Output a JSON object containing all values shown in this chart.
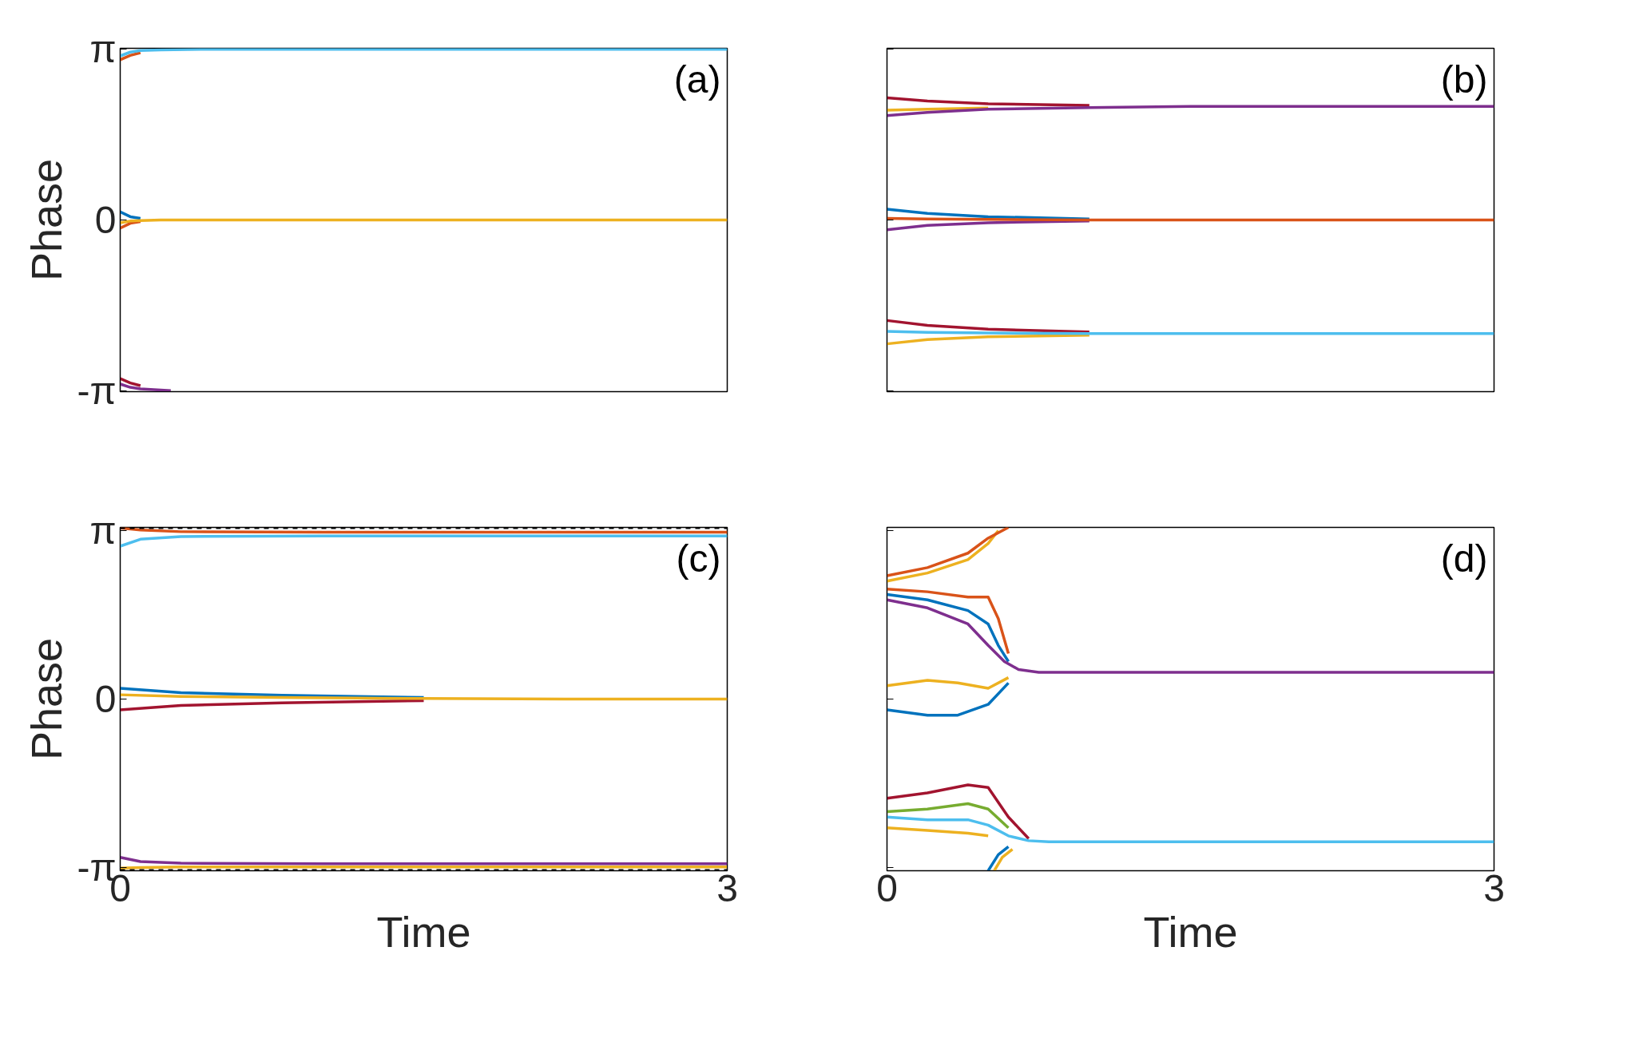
{
  "chart_data": [
    {
      "type": "line",
      "annotations": [
        "(a)"
      ],
      "ylabel": "Phase",
      "xlim": [
        0,
        3
      ],
      "ylim": [
        -3.16,
        3.16
      ],
      "xticks": [
        0,
        3
      ],
      "yticks": [
        {
          "value": -3.14159,
          "label": "-π"
        },
        0,
        {
          "value": 3.14159,
          "label": "π"
        }
      ],
      "tick_labels": "y",
      "grid": false,
      "line_style": "solid",
      "series": [
        {
          "color": "#d95319",
          "x": [
            0,
            0.05,
            0.1
          ],
          "values": [
            2.95,
            3.03,
            3.08
          ]
        },
        {
          "color": "#4dbeee",
          "x": [
            0,
            0.05,
            0.1,
            0.2,
            0.4,
            3
          ],
          "values": [
            3.02,
            3.09,
            3.12,
            3.13,
            3.14,
            3.14
          ]
        },
        {
          "color": "#0072bd",
          "x": [
            0,
            0.05,
            0.1
          ],
          "values": [
            0.15,
            0.06,
            0.03
          ]
        },
        {
          "color": "#d95319",
          "x": [
            0,
            0.05,
            0.1
          ],
          "values": [
            -0.15,
            -0.06,
            -0.03
          ]
        },
        {
          "color": "#edb120",
          "x": [
            0,
            0.05,
            0.1,
            0.2,
            0.4,
            3
          ],
          "values": [
            -0.05,
            -0.02,
            -0.01,
            0,
            0,
            0
          ]
        },
        {
          "color": "#a2142f",
          "x": [
            0,
            0.05,
            0.1
          ],
          "values": [
            -2.92,
            -3.0,
            -3.05
          ]
        },
        {
          "color": "#7e2f8e",
          "x": [
            0,
            0.05,
            0.1,
            0.2,
            0.25
          ],
          "values": [
            -3.02,
            -3.08,
            -3.11,
            -3.13,
            -3.14
          ]
        }
      ]
    },
    {
      "type": "line",
      "annotations": [
        "(b)"
      ],
      "xlim": [
        0,
        3
      ],
      "ylim": [
        -3.16,
        3.16
      ],
      "xticks": [
        0,
        3
      ],
      "yticks": [
        {
          "value": -3.14159,
          "label": null
        },
        {
          "value": 0,
          "label": null
        },
        {
          "value": 3.14159,
          "label": null
        }
      ],
      "tick_labels": false,
      "grid": false,
      "line_style": "solid",
      "series": [
        {
          "color": "#a2142f",
          "x": [
            0,
            0.2,
            0.5,
            1
          ],
          "values": [
            2.25,
            2.19,
            2.14,
            2.11
          ]
        },
        {
          "color": "#edb120",
          "x": [
            0,
            0.2,
            0.5
          ],
          "values": [
            2.02,
            2.04,
            2.06
          ]
        },
        {
          "color": "#7e2f8e",
          "x": [
            0,
            0.2,
            0.5,
            1,
            1.5,
            3
          ],
          "values": [
            1.92,
            1.98,
            2.04,
            2.07,
            2.09,
            2.09
          ]
        },
        {
          "color": "#0072bd",
          "x": [
            0,
            0.2,
            0.5,
            1
          ],
          "values": [
            0.2,
            0.12,
            0.06,
            0.02
          ]
        },
        {
          "color": "#7e2f8e",
          "x": [
            0,
            0.2,
            0.5,
            1
          ],
          "values": [
            -0.18,
            -0.1,
            -0.05,
            -0.02
          ]
        },
        {
          "color": "#d95319",
          "x": [
            0,
            0.2,
            0.5,
            1,
            1.5,
            3
          ],
          "values": [
            0.03,
            0.02,
            0.01,
            0,
            0,
            0
          ]
        },
        {
          "color": "#a2142f",
          "x": [
            0,
            0.2,
            0.5,
            1
          ],
          "values": [
            -1.85,
            -1.94,
            -2.01,
            -2.06
          ]
        },
        {
          "color": "#edb120",
          "x": [
            0,
            0.2,
            0.5,
            1
          ],
          "values": [
            -2.28,
            -2.2,
            -2.15,
            -2.12
          ]
        },
        {
          "color": "#4dbeee",
          "x": [
            0,
            0.2,
            0.5,
            1,
            1.5,
            3
          ],
          "values": [
            -2.05,
            -2.07,
            -2.08,
            -2.09,
            -2.09,
            -2.09
          ]
        }
      ]
    },
    {
      "type": "line",
      "annotations": [
        "(c)"
      ],
      "xlabel": "Time",
      "ylabel": "Phase",
      "xlim": [
        0,
        3
      ],
      "ylim": [
        -3.2,
        3.2
      ],
      "xticks": [
        0,
        3
      ],
      "yticks": [
        {
          "value": -3.14159,
          "label": "-π"
        },
        0,
        {
          "value": 3.14159,
          "label": "π"
        }
      ],
      "grid": false,
      "line_style": "solid",
      "ref_lines": [
        {
          "axis": "y",
          "value": 3.2,
          "color": "#000000",
          "line_style": "dashed"
        },
        {
          "axis": "y",
          "value": -3.2,
          "color": "#000000",
          "line_style": "dashed"
        }
      ],
      "series": [
        {
          "color": "#d95319",
          "x": [
            0,
            0.1,
            0.3,
            1,
            3
          ],
          "values": [
            3.19,
            3.15,
            3.12,
            3.11,
            3.11
          ]
        },
        {
          "color": "#4dbeee",
          "x": [
            0,
            0.1,
            0.3,
            1,
            3
          ],
          "values": [
            2.85,
            2.98,
            3.03,
            3.04,
            3.04
          ]
        },
        {
          "color": "#0072bd",
          "x": [
            0,
            0.3,
            0.8,
            1.5
          ],
          "values": [
            0.2,
            0.12,
            0.07,
            0.03
          ]
        },
        {
          "color": "#a2142f",
          "x": [
            0,
            0.3,
            0.8,
            1.5
          ],
          "values": [
            -0.2,
            -0.12,
            -0.07,
            -0.03
          ]
        },
        {
          "color": "#edb120",
          "x": [
            0,
            0.3,
            0.8,
            1.5,
            2.2,
            3
          ],
          "values": [
            0.08,
            0.05,
            0.03,
            0.01,
            0,
            0
          ]
        },
        {
          "color": "#7e2f8e",
          "x": [
            0,
            0.1,
            0.3,
            1,
            3
          ],
          "values": [
            -2.95,
            -3.03,
            -3.06,
            -3.07,
            -3.07
          ]
        },
        {
          "color": "#edb120",
          "x": [
            0,
            0.1,
            0.3,
            1,
            3
          ],
          "values": [
            -3.15,
            -3.14,
            -3.13,
            -3.13,
            -3.13
          ]
        }
      ]
    },
    {
      "type": "line",
      "annotations": [
        "(d)"
      ],
      "xlabel": "Time",
      "xlim": [
        0,
        3
      ],
      "ylim": [
        -3.2,
        3.2
      ],
      "xticks": [
        0,
        3
      ],
      "yticks": [
        {
          "value": -3.14159,
          "label": null
        },
        {
          "value": 0,
          "label": null
        },
        {
          "value": 3.14159,
          "label": null
        }
      ],
      "tick_labels": "x",
      "grid": false,
      "line_style": "solid",
      "series": [
        {
          "color": "#edb120",
          "x": [
            0,
            0.2,
            0.4,
            0.5,
            0.55
          ],
          "values": [
            2.2,
            2.35,
            2.6,
            2.9,
            3.14
          ]
        },
        {
          "color": "#d95319",
          "x": [
            0,
            0.2,
            0.4,
            0.5,
            0.6
          ],
          "values": [
            2.3,
            2.45,
            2.72,
            3.0,
            3.2
          ]
        },
        {
          "color": "#0072bd",
          "x": [
            0,
            0.2,
            0.4,
            0.5,
            0.55,
            0.6
          ],
          "values": [
            1.95,
            1.85,
            1.65,
            1.4,
            1.0,
            0.7
          ]
        },
        {
          "color": "#d95319",
          "x": [
            0,
            0.2,
            0.4,
            0.5,
            0.55,
            0.6
          ],
          "values": [
            2.05,
            2.0,
            1.9,
            1.9,
            1.5,
            0.85
          ]
        },
        {
          "color": "#0072bd",
          "x": [
            0,
            0.2,
            0.35,
            0.5,
            0.6
          ],
          "values": [
            -0.2,
            -0.3,
            -0.3,
            -0.1,
            0.3
          ]
        },
        {
          "color": "#edb120",
          "x": [
            0,
            0.2,
            0.35,
            0.5,
            0.6
          ],
          "values": [
            0.25,
            0.35,
            0.3,
            0.2,
            0.4
          ]
        },
        {
          "color": "#7e2f8e",
          "x": [
            0,
            0.2,
            0.4,
            0.5,
            0.58,
            0.65,
            0.75,
            3
          ],
          "values": [
            1.85,
            1.7,
            1.4,
            1.0,
            0.7,
            0.55,
            0.5,
            0.5
          ]
        },
        {
          "color": "#a2142f",
          "x": [
            0,
            0.2,
            0.4,
            0.5,
            0.6,
            0.7
          ],
          "values": [
            -1.85,
            -1.75,
            -1.6,
            -1.65,
            -2.2,
            -2.6
          ]
        },
        {
          "color": "#77ac30",
          "x": [
            0,
            0.2,
            0.4,
            0.5,
            0.6
          ],
          "values": [
            -2.1,
            -2.05,
            -1.95,
            -2.05,
            -2.4
          ]
        },
        {
          "color": "#edb120",
          "x": [
            0,
            0.2,
            0.4,
            0.5
          ],
          "values": [
            -2.4,
            -2.45,
            -2.5,
            -2.55
          ]
        },
        {
          "color": "#0072bd",
          "x": [
            0.5,
            0.55,
            0.6
          ],
          "values": [
            -3.2,
            -2.9,
            -2.75
          ]
        },
        {
          "color": "#edb120",
          "x": [
            0.53,
            0.57,
            0.62
          ],
          "values": [
            -3.2,
            -2.95,
            -2.8
          ]
        },
        {
          "color": "#4dbeee",
          "x": [
            0,
            0.2,
            0.4,
            0.5,
            0.6,
            0.7,
            0.8,
            3
          ],
          "values": [
            -2.2,
            -2.25,
            -2.25,
            -2.35,
            -2.55,
            -2.64,
            -2.66,
            -2.66
          ]
        }
      ]
    }
  ]
}
